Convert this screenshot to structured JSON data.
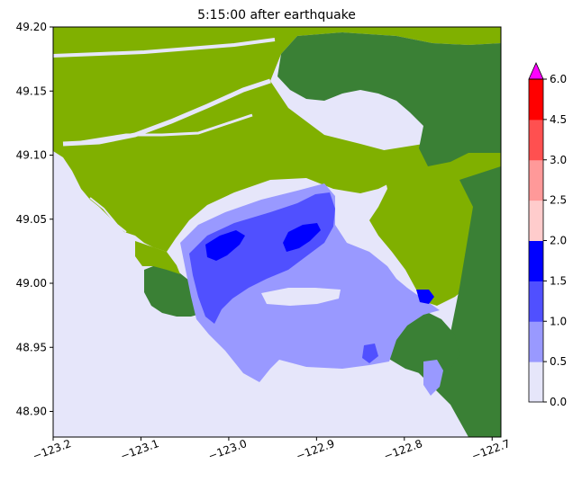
{
  "chart_data": {
    "type": "heatmap",
    "title": "5:15:00 after earthquake",
    "xlabel": "",
    "ylabel": "",
    "xlim": [
      -123.2,
      -122.69
    ],
    "ylim": [
      48.88,
      49.2
    ],
    "x_ticks": [
      {
        "value": -123.2,
        "label": "−123.2"
      },
      {
        "value": -123.1,
        "label": "−123.1"
      },
      {
        "value": -123.0,
        "label": "−123.0"
      },
      {
        "value": -122.9,
        "label": "−122.9"
      },
      {
        "value": -122.8,
        "label": "−122.8"
      },
      {
        "value": -122.7,
        "label": "−122.7"
      }
    ],
    "y_ticks": [
      {
        "value": 48.9,
        "label": "48.90"
      },
      {
        "value": 48.95,
        "label": "48.95"
      },
      {
        "value": 49.0,
        "label": "49.00"
      },
      {
        "value": 49.05,
        "label": "49.05"
      },
      {
        "value": 49.1,
        "label": "49.10"
      },
      {
        "value": 49.15,
        "label": "49.15"
      },
      {
        "value": 49.2,
        "label": "49.20"
      }
    ],
    "colorbar": {
      "levels": [
        0.0,
        0.5,
        1.0,
        1.5,
        2.0,
        2.5,
        3.0,
        4.5,
        6.0
      ],
      "labels": [
        "0.0",
        "0.5",
        "1.0",
        "1.5",
        "2.0",
        "2.5",
        "3.0",
        "4.5",
        "6.0"
      ],
      "colors": [
        "#e6e6fa",
        "#9999ff",
        "#5050ff",
        "#0000ff",
        "#ffcccc",
        "#ff9999",
        "#ff5050",
        "#ff0000"
      ],
      "extend_color": "#ff00ff"
    },
    "land_colors": {
      "lowland": "#80b000",
      "highland": "#3a8035"
    },
    "grid": false
  }
}
